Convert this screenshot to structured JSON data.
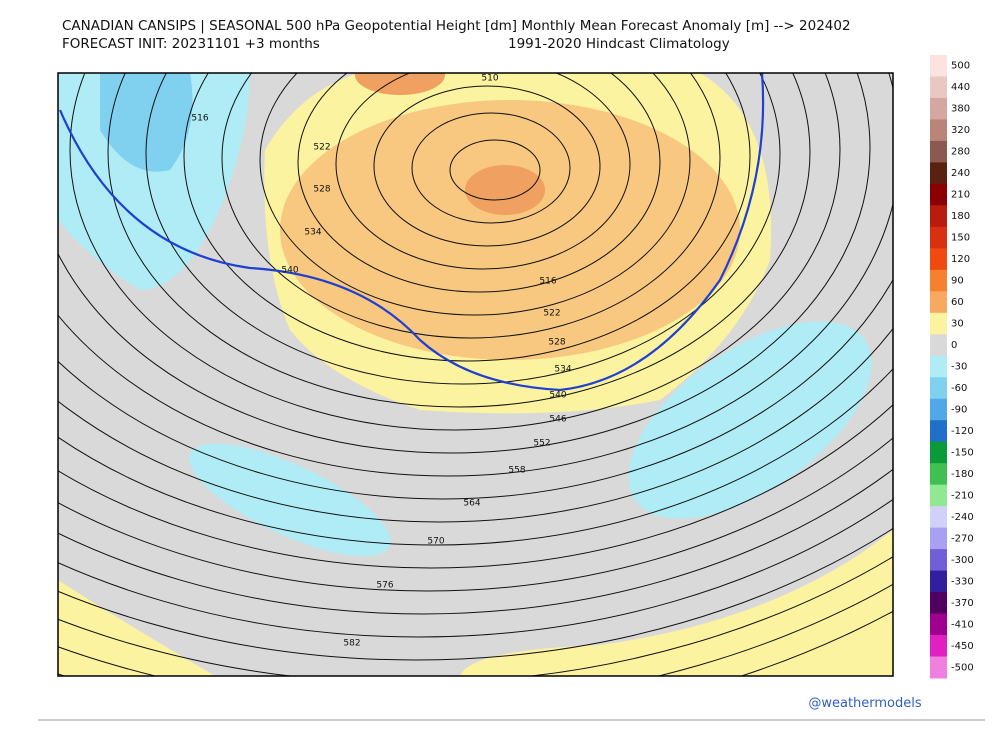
{
  "header": {
    "title": "CANADIAN CANSIPS | SEASONAL 500 hPa Geopotential Height [dm] Monthly Mean Forecast Anomaly [m] --> 202402",
    "init": "FORECAST INIT: 20231101  +3 months",
    "climatology": "1991-2020 Hindcast Climatology"
  },
  "contour_labels": [
    "510",
    "516",
    "522",
    "528",
    "534",
    "540",
    "516",
    "522",
    "528",
    "534",
    "540",
    "546",
    "552",
    "558",
    "564",
    "570",
    "576",
    "582"
  ],
  "colorbar": {
    "labels": [
      500,
      440,
      380,
      320,
      280,
      240,
      210,
      180,
      150,
      120,
      90,
      60,
      30,
      0,
      -30,
      -60,
      -90,
      -120,
      -150,
      -180,
      -210,
      -240,
      -270,
      -300,
      -330,
      -370,
      -410,
      -450,
      -500
    ],
    "colors": [
      "#fbe3e0",
      "#e8c8c0",
      "#d4a8a0",
      "#b88578",
      "#8a5a50",
      "#5a2010",
      "#8b0000",
      "#b81c0c",
      "#d83010",
      "#f04a10",
      "#f58030",
      "#f8a860",
      "#fbf3a0",
      "#d9d9d9",
      "#b0ecf5",
      "#80d0f0",
      "#50a8e8",
      "#2070c8",
      "#0a9a3a",
      "#40c050",
      "#90e890",
      "#d0d0f8",
      "#a8a0f0",
      "#7060d8",
      "#3020a0",
      "#500060",
      "#a00090",
      "#e020c0",
      "#f080e0"
    ]
  },
  "credit": "@weathermodels"
}
